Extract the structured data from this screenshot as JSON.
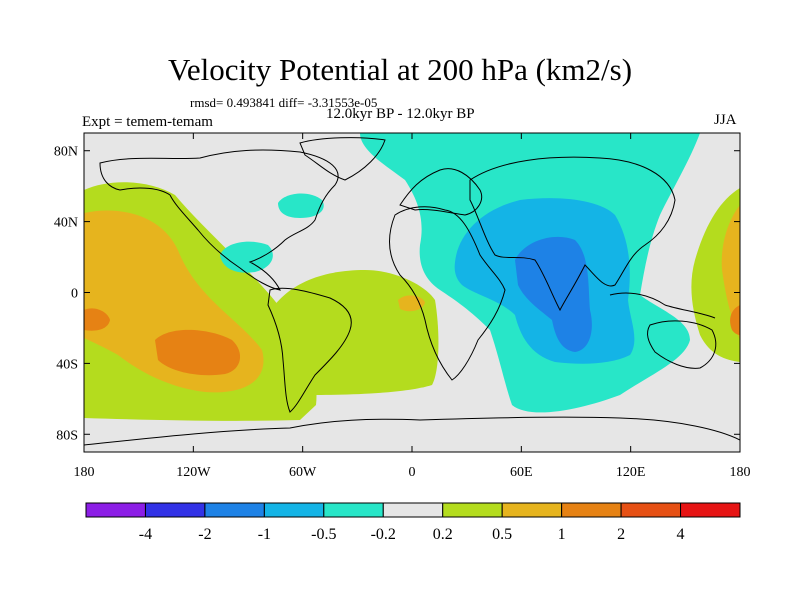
{
  "title": "Velocity Potential at 200 hPa (km2/s)",
  "stats": "rmsd= 0.493841 diff= -3.31553e-05",
  "period": "12.0kyr BP - 12.0kyr BP",
  "experiment": "Expt = temem-temam",
  "season": "JJA",
  "y_axis": {
    "ticks": [
      {
        "value": 80,
        "label": "80N"
      },
      {
        "value": 40,
        "label": "40N"
      },
      {
        "value": 0,
        "label": "0"
      },
      {
        "value": -40,
        "label": "40S"
      },
      {
        "value": -80,
        "label": "80S"
      }
    ]
  },
  "x_axis": {
    "ticks": [
      {
        "value": -180,
        "label": "180"
      },
      {
        "value": -120,
        "label": "120W"
      },
      {
        "value": -60,
        "label": "60W"
      },
      {
        "value": 0,
        "label": "0"
      },
      {
        "value": 60,
        "label": "60E"
      },
      {
        "value": 120,
        "label": "120E"
      },
      {
        "value": 180,
        "label": "180"
      }
    ]
  },
  "colorbar": {
    "colors": [
      "#8c1ee6",
      "#3232e6",
      "#1e82e6",
      "#14b4e6",
      "#28e6c8",
      "#e6e6e6",
      "#b4dc1e",
      "#e6b41e",
      "#e68214",
      "#e65014",
      "#e61414"
    ],
    "labels": [
      "-4",
      "-2",
      "-1",
      "-0.5",
      "-0.2",
      "0.2",
      "0.5",
      "1",
      "2",
      "4"
    ]
  },
  "colors": {
    "background": "#e6e6e6",
    "neg_02": "#28e6c8",
    "neg_05": "#14b4e6",
    "neg_1": "#1e82e6",
    "pos_02": "#b4dc1e",
    "pos_05": "#e6b41e",
    "pos_1": "#e68214"
  }
}
